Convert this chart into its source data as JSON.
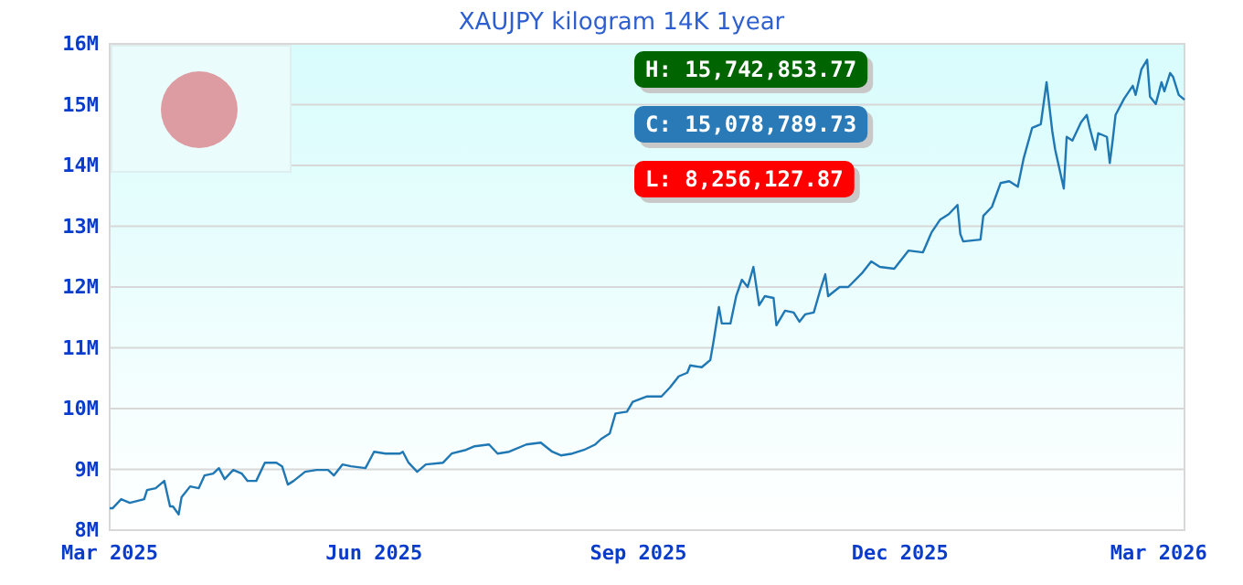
{
  "chart_data": {
    "type": "line",
    "title": "XAUJPY kilogram 14K 1year",
    "x": [
      "2025-03-01",
      "2025-03-02",
      "2025-03-05",
      "2025-03-08",
      "2025-03-13",
      "2025-03-14",
      "2025-03-17",
      "2025-03-20",
      "2025-03-22",
      "2025-03-23",
      "2025-03-25",
      "2025-03-26",
      "2025-03-29",
      "2025-04-01",
      "2025-04-03",
      "2025-04-06",
      "2025-04-08",
      "2025-04-10",
      "2025-04-13",
      "2025-04-16",
      "2025-04-18",
      "2025-04-21",
      "2025-04-24",
      "2025-04-28",
      "2025-04-30",
      "2025-05-02",
      "2025-05-04",
      "2025-05-08",
      "2025-05-12",
      "2025-05-16",
      "2025-05-18",
      "2025-05-21",
      "2025-05-24",
      "2025-05-29",
      "2025-06-01",
      "2025-06-05",
      "2025-06-10",
      "2025-06-11",
      "2025-06-13",
      "2025-06-16",
      "2025-06-19",
      "2025-06-25",
      "2025-06-28",
      "2025-07-03",
      "2025-07-06",
      "2025-07-11",
      "2025-07-14",
      "2025-07-18",
      "2025-07-24",
      "2025-07-29",
      "2025-08-02",
      "2025-08-05",
      "2025-08-09",
      "2025-08-13",
      "2025-08-17",
      "2025-08-19",
      "2025-08-22",
      "2025-08-24",
      "2025-08-28",
      "2025-08-30",
      "2025-09-04",
      "2025-09-09",
      "2025-09-12",
      "2025-09-15",
      "2025-09-18",
      "2025-09-19",
      "2025-09-23",
      "2025-09-26",
      "2025-09-27",
      "2025-09-29",
      "2025-09-30",
      "2025-10-03",
      "2025-10-05",
      "2025-10-07",
      "2025-10-09",
      "2025-10-11",
      "2025-10-13",
      "2025-10-15",
      "2025-10-18",
      "2025-10-19",
      "2025-10-22",
      "2025-10-25",
      "2025-10-27",
      "2025-10-29",
      "2025-11-01",
      "2025-11-03",
      "2025-11-05",
      "2025-11-06",
      "2025-11-10",
      "2025-11-13",
      "2025-11-18",
      "2025-11-21",
      "2025-11-24",
      "2025-11-29",
      "2025-12-04",
      "2025-12-09",
      "2025-12-12",
      "2025-12-15",
      "2025-12-18",
      "2025-12-21",
      "2025-12-22",
      "2025-12-23",
      "2025-12-29",
      "2025-12-30",
      "2026-01-02",
      "2026-01-05",
      "2026-01-08",
      "2026-01-11",
      "2026-01-13",
      "2026-01-16",
      "2026-01-19",
      "2026-01-21",
      "2026-01-23",
      "2026-01-24",
      "2026-01-27",
      "2026-01-28",
      "2026-01-30",
      "2026-02-02",
      "2026-02-04",
      "2026-02-05",
      "2026-02-07",
      "2026-02-08",
      "2026-02-11",
      "2026-02-12",
      "2026-02-13",
      "2026-02-14",
      "2026-02-17",
      "2026-02-20",
      "2026-02-21",
      "2026-02-23",
      "2026-02-25",
      "2026-02-26",
      "2026-02-28",
      "2026-03-02",
      "2026-03-03",
      "2026-03-05",
      "2026-03-06",
      "2026-03-08",
      "2026-03-10"
    ],
    "series": [
      {
        "color": "#1f77b4",
        "values": [
          8360000,
          8360000,
          8510000,
          8450000,
          8510000,
          8660000,
          8690000,
          8810000,
          8390000,
          8390000,
          8260000,
          8540000,
          8720000,
          8690000,
          8900000,
          8930000,
          9020000,
          8840000,
          8990000,
          8930000,
          8810000,
          8810000,
          9110000,
          9110000,
          9050000,
          8750000,
          8810000,
          8960000,
          8990000,
          8990000,
          8900000,
          9080000,
          9050000,
          9020000,
          9290000,
          9260000,
          9260000,
          9290000,
          9110000,
          8960000,
          9080000,
          9110000,
          9260000,
          9320000,
          9380000,
          9410000,
          9260000,
          9290000,
          9410000,
          9440000,
          9290000,
          9230000,
          9260000,
          9320000,
          9410000,
          9500000,
          9590000,
          9920000,
          9950000,
          10110000,
          10200000,
          10200000,
          10350000,
          10530000,
          10590000,
          10710000,
          10680000,
          10800000,
          11070000,
          11670000,
          11400000,
          11400000,
          11850000,
          12120000,
          12000000,
          12330000,
          11700000,
          11850000,
          11820000,
          11370000,
          11610000,
          11580000,
          11430000,
          11550000,
          11580000,
          11910000,
          12210000,
          11850000,
          12000000,
          12000000,
          12240000,
          12420000,
          12330000,
          12300000,
          12600000,
          12570000,
          12900000,
          13110000,
          13200000,
          13350000,
          12870000,
          12750000,
          12780000,
          13170000,
          13320000,
          13710000,
          13740000,
          13650000,
          14110000,
          14620000,
          14680000,
          15370000,
          14560000,
          14260000,
          13620000,
          14470000,
          14410000,
          14710000,
          14830000,
          14620000,
          14260000,
          14530000,
          14470000,
          14040000,
          14410000,
          14830000,
          15100000,
          15310000,
          15160000,
          15580000,
          15740000,
          15130000,
          15010000,
          15370000,
          15220000,
          15520000,
          15460000,
          15160000,
          15080000
        ]
      }
    ],
    "xlim": [
      "2025-03-01",
      "2026-03-10"
    ],
    "xticks": [
      {
        "value": "2025-03-01",
        "label": "Mar 2025"
      },
      {
        "value": "2025-06-01",
        "label": "Jun 2025"
      },
      {
        "value": "2025-09-01",
        "label": "Sep 2025"
      },
      {
        "value": "2025-12-01",
        "label": "Dec 2025"
      },
      {
        "value": "2026-03-01",
        "label": "Mar 2026"
      }
    ],
    "ylim": [
      8000000,
      16000000
    ],
    "yticks": [
      {
        "value": 8000000,
        "label": "8M"
      },
      {
        "value": 9000000,
        "label": "9M"
      },
      {
        "value": 10000000,
        "label": "10M"
      },
      {
        "value": 11000000,
        "label": "11M"
      },
      {
        "value": 12000000,
        "label": "12M"
      },
      {
        "value": 13000000,
        "label": "13M"
      },
      {
        "value": 14000000,
        "label": "14M"
      },
      {
        "value": 15000000,
        "label": "15M"
      },
      {
        "value": 16000000,
        "label": "16M"
      }
    ],
    "grid": "y",
    "annotations": [
      "H: 15,742,853.77",
      "C: 15,078,789.73",
      "L: 8,256,127.87"
    ]
  }
}
